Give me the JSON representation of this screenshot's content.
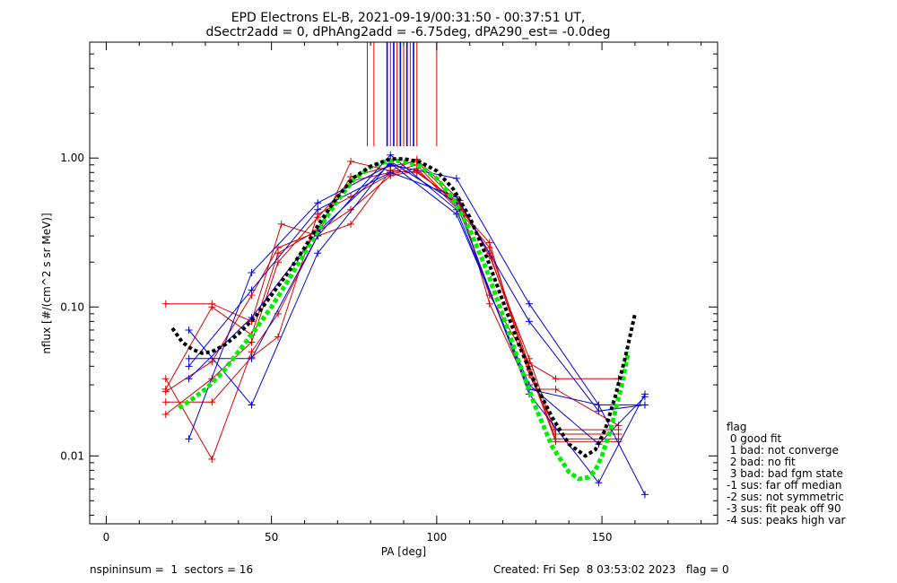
{
  "chart_data": {
    "type": "line",
    "title_line1": "EPD Electrons EL-B, 2021-09-19/00:31:50 - 00:37:51 UT,",
    "title_line2": "dSectr2add = 0, dPhAng2add = -6.75deg, dPA290_est=  -0.0deg",
    "xlabel": "PA [deg]",
    "ylabel": "nflux [#/(cm^2 s sr MeV)]",
    "xlim": [
      -5,
      185
    ],
    "ylim": [
      0.0035,
      6.0
    ],
    "y_scale": "log",
    "x_ticks": [
      0,
      50,
      100,
      150
    ],
    "x_tick_labels": [
      "0",
      "50",
      "100",
      "150"
    ],
    "y_ticks": [
      0.01,
      0.1,
      1.0
    ],
    "y_tick_labels": [
      "0.01",
      "0.10",
      "1.00"
    ],
    "colors": {
      "red": "#dd0000",
      "blue": "#0000dd",
      "black": "#000000",
      "green": "#00ee00"
    },
    "vertical_markers": {
      "y_from": 1.2,
      "y_to": 6.0,
      "red_x": [
        79,
        81,
        86,
        88,
        90,
        92,
        94,
        100
      ],
      "blue_x": [
        85,
        87,
        89,
        91,
        93
      ]
    },
    "red_series": [
      {
        "x": [
          18,
          32,
          44,
          53,
          64,
          74,
          86,
          94,
          107,
          116,
          128,
          136,
          155
        ],
        "y": [
          0.105,
          0.105,
          0.08,
          0.36,
          0.3,
          0.95,
          0.82,
          0.98,
          0.52,
          0.105,
          0.028,
          0.028,
          0.016
        ]
      },
      {
        "x": [
          18,
          32,
          44,
          52,
          64,
          74,
          86,
          94,
          107,
          116,
          128,
          136,
          155
        ],
        "y": [
          0.028,
          0.1,
          0.065,
          0.23,
          0.33,
          0.75,
          0.88,
          0.95,
          0.48,
          0.12,
          0.042,
          0.033,
          0.033
        ]
      },
      {
        "x": [
          18,
          32,
          44,
          52,
          64,
          74,
          86,
          94,
          107,
          116,
          128,
          136,
          155
        ],
        "y": [
          0.019,
          0.033,
          0.058,
          0.2,
          0.4,
          0.7,
          0.8,
          0.9,
          0.45,
          0.27,
          0.035,
          0.015,
          0.015
        ]
      },
      {
        "x": [
          18,
          32,
          44,
          52,
          64,
          74,
          86,
          94,
          107,
          116,
          128,
          136,
          155
        ],
        "y": [
          0.033,
          0.0095,
          0.05,
          0.09,
          0.3,
          0.36,
          0.82,
          0.8,
          0.5,
          0.22,
          0.045,
          0.014,
          0.014
        ]
      },
      {
        "x": [
          18,
          32,
          44,
          52,
          64,
          74,
          86,
          94,
          107,
          116,
          128,
          136,
          155
        ],
        "y": [
          0.023,
          0.023,
          0.046,
          0.063,
          0.42,
          0.55,
          0.78,
          0.85,
          0.44,
          0.25,
          0.04,
          0.013,
          0.013
        ]
      },
      {
        "x": [
          18,
          32,
          44,
          52,
          64,
          74,
          86,
          94,
          107,
          116,
          128,
          136,
          155
        ],
        "y": [
          0.027,
          0.043,
          0.12,
          0.25,
          0.32,
          0.45,
          0.76,
          0.82,
          0.48,
          0.23,
          0.038,
          0.0125,
          0.0125
        ]
      }
    ],
    "blue_series": [
      {
        "x": [
          25,
          44,
          64,
          86,
          106,
          128,
          149,
          163
        ],
        "y": [
          0.045,
          0.045,
          0.3,
          1.05,
          0.45,
          0.028,
          0.022,
          0.022
        ]
      },
      {
        "x": [
          25,
          44,
          64,
          86,
          106,
          128,
          149,
          163
        ],
        "y": [
          0.013,
          0.17,
          0.5,
          0.9,
          0.73,
          0.105,
          0.022,
          0.0055
        ]
      },
      {
        "x": [
          25,
          44,
          64,
          86,
          106,
          128,
          149,
          163
        ],
        "y": [
          0.07,
          0.022,
          0.23,
          0.95,
          0.5,
          0.026,
          0.0066,
          0.026
        ]
      },
      {
        "x": [
          25,
          44,
          64,
          86,
          106,
          128,
          149,
          163
        ],
        "y": [
          0.04,
          0.13,
          0.45,
          0.8,
          0.55,
          0.08,
          0.02,
          0.022
        ]
      },
      {
        "x": [
          25,
          44,
          64,
          86,
          106,
          128,
          149,
          163
        ],
        "y": [
          0.033,
          0.085,
          0.32,
          0.92,
          0.42,
          0.03,
          0.012,
          0.025
        ]
      }
    ],
    "black_fit": {
      "x": [
        20,
        23,
        26,
        29,
        32,
        36,
        40,
        45,
        50,
        55,
        60,
        65,
        70,
        75,
        80,
        85,
        88,
        91,
        95,
        100,
        105,
        110,
        115,
        120,
        125,
        130,
        135,
        140,
        145,
        148,
        151,
        154,
        157,
        160
      ],
      "y": [
        0.072,
        0.058,
        0.052,
        0.049,
        0.05,
        0.056,
        0.066,
        0.085,
        0.12,
        0.17,
        0.25,
        0.38,
        0.55,
        0.74,
        0.88,
        0.97,
        0.99,
        0.98,
        0.94,
        0.82,
        0.62,
        0.4,
        0.22,
        0.11,
        0.055,
        0.03,
        0.018,
        0.012,
        0.01,
        0.011,
        0.015,
        0.025,
        0.045,
        0.09
      ]
    },
    "green_fit": {
      "x": [
        22,
        26,
        30,
        35,
        40,
        45,
        50,
        55,
        60,
        65,
        70,
        75,
        80,
        85,
        88,
        91,
        95,
        100,
        105,
        110,
        115,
        120,
        125,
        130,
        135,
        140,
        143,
        146,
        148,
        150,
        153,
        156,
        158
      ],
      "y": [
        0.021,
        0.024,
        0.028,
        0.036,
        0.05,
        0.07,
        0.1,
        0.15,
        0.23,
        0.35,
        0.52,
        0.72,
        0.87,
        0.95,
        0.96,
        0.94,
        0.88,
        0.73,
        0.53,
        0.33,
        0.18,
        0.088,
        0.042,
        0.021,
        0.0115,
        0.0078,
        0.007,
        0.0072,
        0.008,
        0.01,
        0.016,
        0.03,
        0.05
      ]
    }
  },
  "legend": {
    "title": "flag",
    "items": [
      " 0 good fit",
      " 1 bad: not converge",
      " 2 bad: no fit",
      " 3 bad: bad fgm state",
      "-1 sus: far off median",
      "-2 sus: not symmetric",
      "-3 sus: fit peak off 90",
      "-4 sus: peaks high var"
    ]
  },
  "footer": {
    "left": "nspininsum =  1  sectors = 16",
    "right": "Created: Fri Sep  8 03:53:02 2023   flag = 0"
  }
}
